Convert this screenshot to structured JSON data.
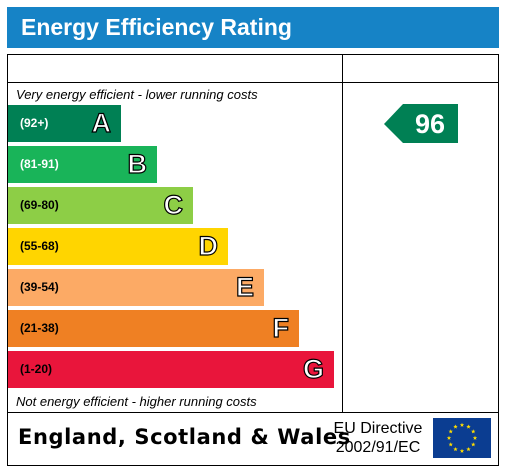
{
  "header": {
    "title": "Energy Efficiency Rating"
  },
  "chart_data": {
    "type": "bar",
    "title": "Energy Efficiency Rating",
    "categories": [
      "(92+)",
      "(81-91)",
      "(69-80)",
      "(55-68)",
      "(39-54)",
      "(21-38)",
      "(1-20)"
    ],
    "band_letters": [
      "A",
      "B",
      "C",
      "D",
      "E",
      "F",
      "G"
    ],
    "band_colors": [
      "#008054",
      "#19b459",
      "#8dce46",
      "#ffd500",
      "#fcaa65",
      "#ef8023",
      "#e9153b"
    ],
    "top_caption": "Very energy efficient - lower running costs",
    "bottom_caption": "Not energy efficient - higher running costs",
    "current_rating": {
      "value": 96,
      "band": "A",
      "color": "#008054"
    },
    "potential_rating": null
  },
  "footer": {
    "region": "England, Scotland & Wales",
    "directive_line1": "EU Directive",
    "directive_line2": "2002/91/EC"
  },
  "icons": {
    "flag": "eu-flag-icon"
  }
}
